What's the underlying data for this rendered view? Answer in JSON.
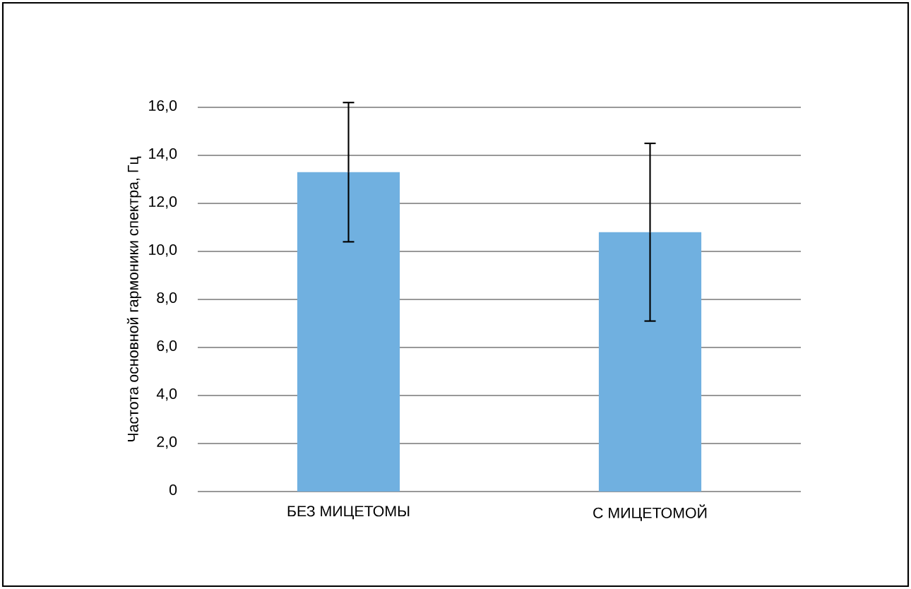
{
  "chart_data": {
    "type": "bar",
    "ylabel": "Частота основной гармоники спектра, Гц",
    "categories": [
      "БЕЗ МИЦЕТОМЫ",
      "С МИЦЕТОМОЙ"
    ],
    "values": [
      13.3,
      10.8
    ],
    "errors": [
      2.9,
      3.7
    ],
    "color": "#70b0e0",
    "ylim": [
      0,
      16
    ],
    "yticks": [
      {
        "value": 0,
        "label": "0"
      },
      {
        "value": 2,
        "label": "2,0"
      },
      {
        "value": 4,
        "label": "4,0"
      },
      {
        "value": 6,
        "label": "6,0"
      },
      {
        "value": 8,
        "label": "8,0"
      },
      {
        "value": 10,
        "label": "10,0"
      },
      {
        "value": 12,
        "label": "12,0"
      },
      {
        "value": 14,
        "label": "14,0"
      },
      {
        "value": 16,
        "label": "16,0"
      }
    ],
    "grid": "y"
  }
}
